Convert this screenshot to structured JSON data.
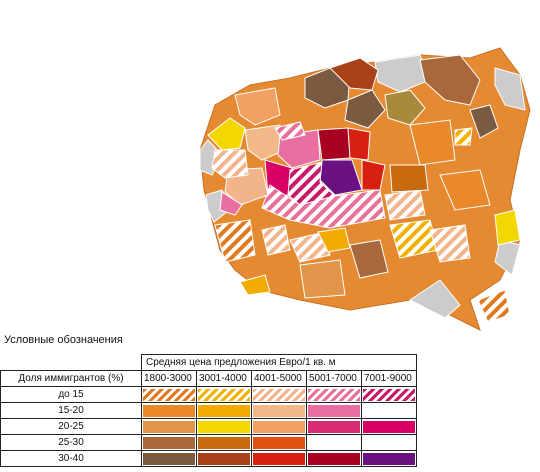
{
  "legend": {
    "title": "Условные обозначения",
    "price_header": "Средняя цена предложения Евро/1 кв. м",
    "immigrants_header": "Доля иммигрантов (%)",
    "price_classes": [
      "1800-3000",
      "3001-4000",
      "4001-5000",
      "5001-7000",
      "7001-9000"
    ],
    "immigrant_classes": [
      "до 15",
      "15-20",
      "20-25",
      "25-30",
      "30-40"
    ],
    "colors": {
      "до 15": [
        "#e07a20",
        "#f0b200",
        "#f2b48a",
        "#e8709c",
        "#c8186a"
      ],
      "15-20": [
        "#e9892c",
        "#f2ab00",
        "#f2b888",
        "#e86fa0",
        "#ffffff"
      ],
      "20-25": [
        "#e0954a",
        "#f2d800",
        "#f0a060",
        "#d82c74",
        "#d80064"
      ],
      "25-30": [
        "#a8683c",
        "#c86a10",
        "#e05010",
        "#ffffff",
        "#ffffff"
      ],
      "30-40": [
        "#7a5a40",
        "#a84018",
        "#d82010",
        "#a80020",
        "#6a1080"
      ]
    },
    "hatched_row": "до 15",
    "empty_cells": [
      [
        "15-20",
        "7001-9000"
      ],
      [
        "25-30",
        "5001-7000"
      ],
      [
        "25-30",
        "7001-9000"
      ]
    ]
  }
}
